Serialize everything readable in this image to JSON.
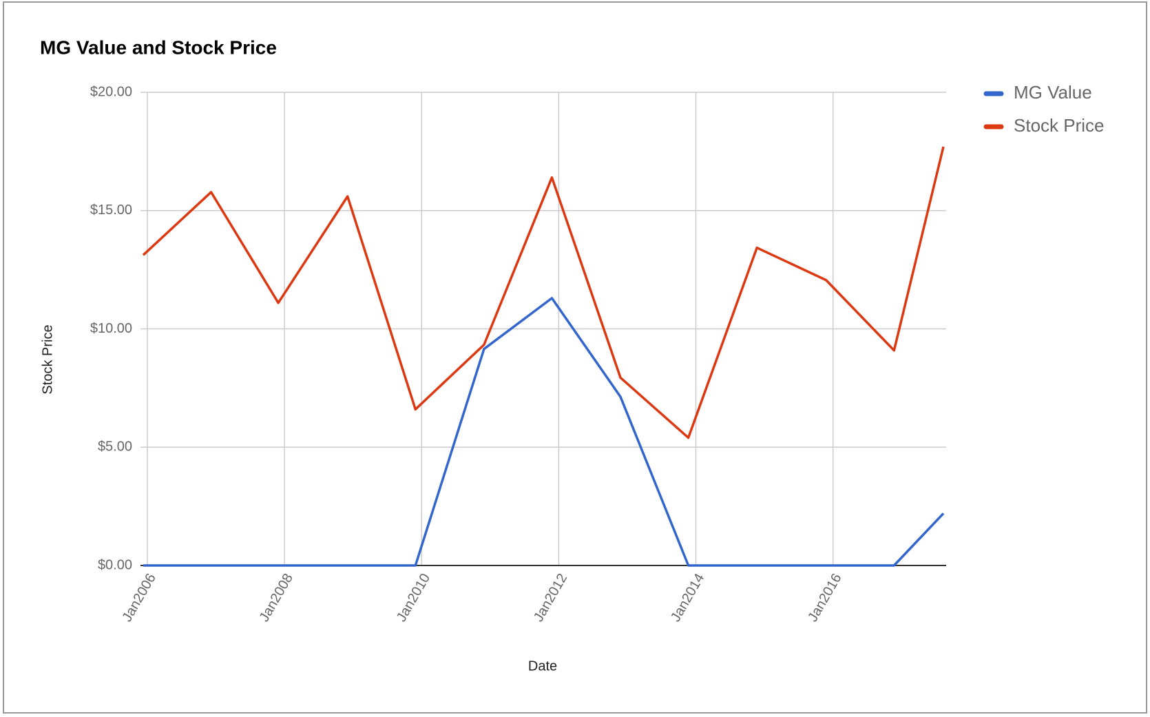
{
  "chart_data": {
    "type": "line",
    "title": "MG Value and Stock Price",
    "x_label": "Date",
    "y_label": "Stock Price",
    "x": [
      2005.94,
      2006.93,
      2007.91,
      2008.92,
      2009.91,
      2010.91,
      2011.9,
      2012.9,
      2013.89,
      2014.89,
      2015.9,
      2016.89,
      2017.61
    ],
    "series": [
      {
        "name": "MG Value",
        "color": "#3366cc",
        "values": [
          0,
          0,
          0,
          0,
          0,
          9.15,
          11.3,
          7.13,
          0,
          0,
          0,
          0,
          2.2
        ]
      },
      {
        "name": "Stock Price",
        "color": "#dc3912",
        "values": [
          13.12,
          15.78,
          11.1,
          15.6,
          6.6,
          9.33,
          16.4,
          7.94,
          5.4,
          13.43,
          12.06,
          9.09,
          17.7
        ]
      }
    ],
    "xlim": [
      2005.9,
      2017.65
    ],
    "xticks": [
      {
        "value": 2006,
        "label": "Jan2006"
      },
      {
        "value": 2008,
        "label": "Jan2008"
      },
      {
        "value": 2010,
        "label": "Jan2010"
      },
      {
        "value": 2012,
        "label": "Jan2012"
      },
      {
        "value": 2014,
        "label": "Jan2014"
      },
      {
        "value": 2016,
        "label": "Jan2016"
      }
    ],
    "ylim": [
      0,
      20
    ],
    "yticks": [
      {
        "value": 0,
        "label": "$0.00"
      },
      {
        "value": 5,
        "label": "$5.00"
      },
      {
        "value": 10,
        "label": "$10.00"
      },
      {
        "value": 15,
        "label": "$15.00"
      },
      {
        "value": 20,
        "label": "$20.00"
      }
    ],
    "grid": true,
    "legend": "right"
  }
}
